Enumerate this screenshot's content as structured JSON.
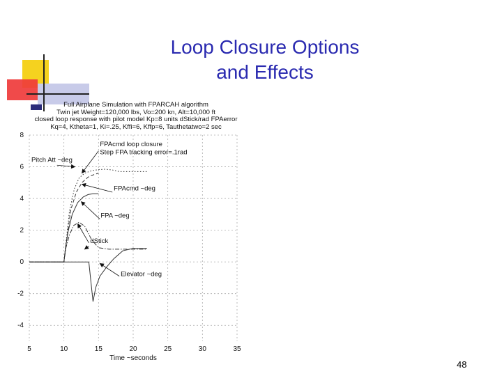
{
  "slide": {
    "title_line1": "Loop Closure Options",
    "title_line2": "and Effects",
    "page_number": "48",
    "accent_color": "#2a2ab0"
  },
  "chart_data": {
    "type": "line",
    "title_lines": [
      "Full Airplane Simulation with FPARCAH algorithm",
      "Twin jet Weight=120,000 lbs, Vo=200 kn, Alt=10,000 ft",
      "closed loop response with pilot model Kp=8 units dStick/rad FPAerror",
      "Kq=4, Ktheta=1, Ki=.25, Kffi=6, Kffp=6, Tauthetatwo=2 sec"
    ],
    "xlabel": "Time ~seconds",
    "ylabel": "",
    "xlim": [
      5,
      35
    ],
    "ylim": [
      -5,
      8
    ],
    "x_ticks": [
      "5",
      "10",
      "15",
      "20",
      "25",
      "30",
      "35"
    ],
    "y_ticks": [
      "8",
      "6",
      "4",
      "2",
      "0",
      "-2",
      "-4"
    ],
    "grid": true,
    "annotations": [
      {
        "text": "FPAcmd loop closure",
        "x": 15.2,
        "y": 7.3
      },
      {
        "text": "Step FPA tracking error=.1rad",
        "x": 15.2,
        "y": 6.8
      },
      {
        "text": "Pitch Att ~deg",
        "x": 5.3,
        "y": 6.3
      },
      {
        "text": "FPAcmd ~deg",
        "x": 17.2,
        "y": 4.5
      },
      {
        "text": "FPA ~deg",
        "x": 15.3,
        "y": 2.8
      },
      {
        "text": "dStick",
        "x": 13.8,
        "y": 1.2
      },
      {
        "text": "Elevator ~deg",
        "x": 18.2,
        "y": -0.9
      }
    ],
    "series": [
      {
        "name": "Pitch Att ~deg",
        "style": "dotted",
        "x": [
          5,
          10,
          10.3,
          10.8,
          11.5,
          12.2,
          13,
          14,
          15,
          16,
          17,
          18,
          20,
          22
        ],
        "y": [
          0,
          0,
          1.2,
          3.2,
          4.6,
          5.3,
          5.6,
          5.75,
          5.82,
          5.85,
          5.8,
          5.7,
          5.7,
          5.7
        ]
      },
      {
        "name": "FPAcmd ~deg",
        "style": "dashed",
        "x": [
          5,
          10,
          10.4,
          11,
          11.8,
          12.6,
          13.5,
          14.3,
          15
        ],
        "y": [
          0,
          0,
          1.4,
          3.3,
          4.4,
          5.0,
          5.35,
          5.5,
          5.6
        ]
      },
      {
        "name": "FPA ~deg",
        "style": "solid",
        "x": [
          5,
          10,
          10.2,
          10.6,
          11.2,
          12,
          12.8,
          13.5,
          14.2,
          15
        ],
        "y": [
          0,
          0,
          0.8,
          1.9,
          3.0,
          3.75,
          4.1,
          4.25,
          4.3,
          4.3
        ]
      },
      {
        "name": "dStick",
        "style": "dashdot",
        "x": [
          5,
          10,
          10.3,
          10.8,
          11.4,
          12.2,
          13,
          14,
          15,
          16.5,
          18,
          20,
          22
        ],
        "y": [
          0,
          0,
          0.9,
          1.7,
          2.3,
          2.5,
          2.25,
          1.4,
          0.9,
          0.8,
          0.8,
          0.8,
          0.8
        ]
      },
      {
        "name": "Elevator ~deg",
        "style": "solid",
        "x": [
          5,
          13.6,
          14.2,
          14.6,
          15.2,
          16.2,
          17.2,
          18.5,
          20,
          22
        ],
        "y": [
          0,
          0,
          -2.5,
          -1.6,
          -0.9,
          -0.3,
          0.2,
          0.7,
          0.85,
          0.85
        ]
      }
    ]
  }
}
